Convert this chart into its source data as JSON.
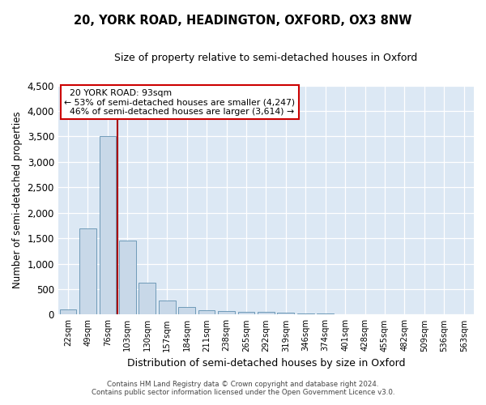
{
  "title_line1": "20, YORK ROAD, HEADINGTON, OXFORD, OX3 8NW",
  "title_line2": "Size of property relative to semi-detached houses in Oxford",
  "xlabel": "Distribution of semi-detached houses by size in Oxford",
  "ylabel": "Number of semi-detached properties",
  "footer_line1": "Contains HM Land Registry data © Crown copyright and database right 2024.",
  "footer_line2": "Contains public sector information licensed under the Open Government Licence v3.0.",
  "categories": [
    "22sqm",
    "49sqm",
    "76sqm",
    "103sqm",
    "130sqm",
    "157sqm",
    "184sqm",
    "211sqm",
    "238sqm",
    "265sqm",
    "292sqm",
    "319sqm",
    "346sqm",
    "374sqm",
    "401sqm",
    "428sqm",
    "455sqm",
    "482sqm",
    "509sqm",
    "536sqm",
    "563sqm"
  ],
  "values": [
    100,
    1700,
    3500,
    1450,
    620,
    270,
    150,
    90,
    75,
    60,
    50,
    40,
    30,
    20,
    10,
    8,
    5,
    4,
    3,
    2,
    2
  ],
  "bar_color": "#c8d8e8",
  "bar_edge_color": "#6090b0",
  "property_line_x": 2.5,
  "property_sqm": 93,
  "pct_smaller": 53,
  "count_smaller": 4247,
  "pct_larger": 46,
  "count_larger": 3614,
  "vline_color": "#aa0000",
  "ylim": [
    0,
    4500
  ],
  "yticks": [
    0,
    500,
    1000,
    1500,
    2000,
    2500,
    3000,
    3500,
    4000,
    4500
  ],
  "axes_bg_color": "#dce8f4",
  "fig_bg_color": "#ffffff"
}
